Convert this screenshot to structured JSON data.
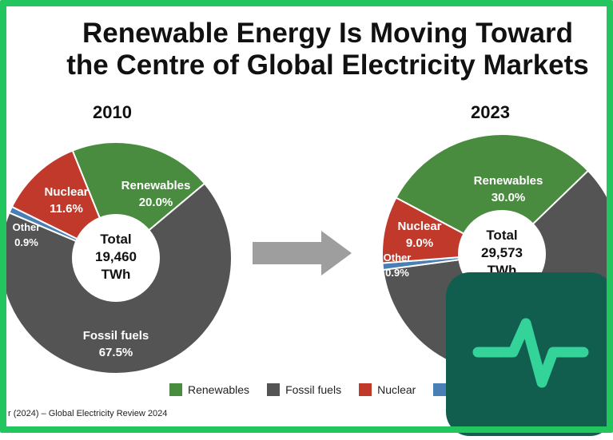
{
  "title_line1": "Renewable Energy Is Moving Toward",
  "title_line2": "the Centre of Global Electricity Markets",
  "source": "r (2024) – Global Electricity Review 2024",
  "colors": {
    "renewables": "#4a8c3f",
    "fossil": "#545454",
    "nuclear": "#c0392b",
    "other": "#4a7fb5",
    "badge": "#115e4f",
    "badge_icon": "#34d399",
    "frame": "#22c55e"
  },
  "app_badge": {
    "icon": "pulse-icon"
  },
  "arrow": {
    "icon": "right-arrow-icon"
  },
  "chart_data": [
    {
      "type": "pie",
      "variant": "donut",
      "title": "2010",
      "center_label": [
        "Total",
        "19,460",
        "TWh"
      ],
      "slices": [
        {
          "name": "Renewables",
          "value": 20.0,
          "label": "Renewables",
          "value_label": "20.0%"
        },
        {
          "name": "Fossil fuels",
          "value": 67.5,
          "label": "Fossil fuels",
          "value_label": "67.5%"
        },
        {
          "name": "Other",
          "value": 0.9,
          "label": "Other",
          "value_label": "0.9%"
        },
        {
          "name": "Nuclear",
          "value": 11.6,
          "label": "Nuclear",
          "value_label": "11.6%"
        }
      ]
    },
    {
      "type": "pie",
      "variant": "donut",
      "title": "2023",
      "center_label": [
        "Total",
        "29,573",
        "TWh"
      ],
      "slices": [
        {
          "name": "Renewables",
          "value": 30.0,
          "label": "Renewables",
          "value_label": "30.0%"
        },
        {
          "name": "Fossil fuels",
          "value": 60.1,
          "label": "",
          "value_label": ""
        },
        {
          "name": "Other",
          "value": 0.9,
          "label": "Other",
          "value_label": "0.9%"
        },
        {
          "name": "Nuclear",
          "value": 9.0,
          "label": "Nuclear",
          "value_label": "9.0%"
        }
      ]
    }
  ],
  "legend": [
    {
      "label": "Renewables",
      "color": "#4a8c3f"
    },
    {
      "label": "Fossil fuels",
      "color": "#545454"
    },
    {
      "label": "Nuclear",
      "color": "#c0392b"
    },
    {
      "label": "",
      "color": "#4a7fb5"
    }
  ]
}
